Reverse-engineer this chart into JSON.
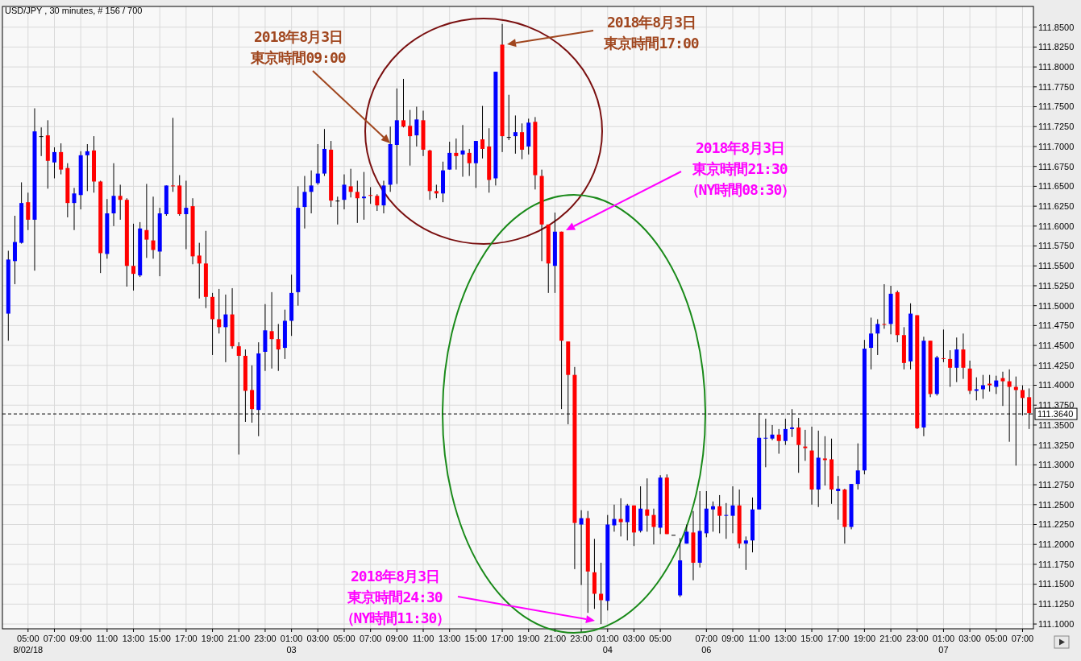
{
  "chart_data": {
    "type": "candlestick",
    "title": "USD/JPY , 30 minutes, # 156 / 700",
    "categories": [
      null,
      null,
      null,
      "05:00\n8/02/18",
      null,
      null,
      null,
      "07:00",
      null,
      null,
      null,
      "09:00",
      null,
      null,
      null,
      "11:00",
      null,
      null,
      null,
      "13:00",
      null,
      null,
      null,
      "15:00",
      null,
      null,
      null,
      "17:00",
      null,
      null,
      null,
      "19:00",
      null,
      null,
      null,
      "21:00",
      null,
      null,
      null,
      "23:00",
      null,
      null,
      null,
      "01:00\n03",
      null,
      null,
      null,
      "03:00",
      null,
      null,
      null,
      "05:00",
      null,
      null,
      null,
      "07:00",
      null,
      null,
      null,
      "09:00",
      null,
      null,
      null,
      "11:00",
      null,
      null,
      null,
      "13:00",
      null,
      null,
      null,
      "15:00",
      null,
      null,
      null,
      "17:00",
      null,
      null,
      null,
      "19:00",
      null,
      null,
      null,
      "21:00",
      null,
      null,
      null,
      "23:00",
      null,
      null,
      null,
      "01:00\n04",
      null,
      null,
      null,
      "03:00",
      null,
      null,
      null,
      "05:00",
      null,
      null,
      null,
      null,
      null,
      null,
      "07:00\n06",
      null,
      null,
      null,
      "09:00",
      null,
      null,
      null,
      "11:00",
      null,
      null,
      null,
      "13:00",
      null,
      null,
      null,
      "15:00",
      null,
      null,
      null,
      "17:00",
      null,
      null,
      null,
      "19:00",
      null,
      null,
      null,
      "21:00",
      null,
      null,
      null,
      "23:00",
      null,
      null,
      null,
      "01:00\n07",
      null,
      null,
      null,
      "03:00",
      null,
      null,
      null,
      "05:00",
      null,
      null,
      null,
      "07:00",
      null
    ],
    "ohlc": [
      [
        111.49,
        111.569,
        111.456,
        111.558
      ],
      [
        111.556,
        111.613,
        111.527,
        111.58
      ],
      [
        111.579,
        111.655,
        111.578,
        111.629
      ],
      [
        111.63,
        111.642,
        111.595,
        111.608
      ],
      [
        111.608,
        111.748,
        111.544,
        111.719
      ],
      [
        111.713,
        111.724,
        111.688,
        111.713
      ],
      [
        111.714,
        111.733,
        111.647,
        111.682
      ],
      [
        111.68,
        111.699,
        111.66,
        111.693
      ],
      [
        111.693,
        111.704,
        111.665,
        111.671
      ],
      [
        111.673,
        111.679,
        111.611,
        111.629
      ],
      [
        111.629,
        111.648,
        111.595,
        111.641
      ],
      [
        111.639,
        111.694,
        111.621,
        111.689
      ],
      [
        111.689,
        111.703,
        111.644,
        111.694
      ],
      [
        111.695,
        111.713,
        111.642,
        111.656
      ],
      [
        111.656,
        111.657,
        111.541,
        111.566
      ],
      [
        111.565,
        111.634,
        111.559,
        111.616
      ],
      [
        111.616,
        111.679,
        111.6,
        111.638
      ],
      [
        111.638,
        111.652,
        111.608,
        111.633
      ],
      [
        111.633,
        111.635,
        111.524,
        111.55
      ],
      [
        111.55,
        111.603,
        111.519,
        111.54
      ],
      [
        111.538,
        111.605,
        111.536,
        111.597
      ],
      [
        111.595,
        111.653,
        111.56,
        111.583
      ],
      [
        111.582,
        111.637,
        111.559,
        111.57
      ],
      [
        111.568,
        111.623,
        111.537,
        111.616
      ],
      [
        111.615,
        111.651,
        111.613,
        111.651
      ],
      [
        111.651,
        111.736,
        111.643,
        111.65
      ],
      [
        111.651,
        111.664,
        111.613,
        111.615
      ],
      [
        111.615,
        111.657,
        111.571,
        111.623
      ],
      [
        111.625,
        111.635,
        111.552,
        111.562
      ],
      [
        111.563,
        111.579,
        111.509,
        111.553
      ],
      [
        111.553,
        111.594,
        111.497,
        111.511
      ],
      [
        111.511,
        111.516,
        111.438,
        111.483
      ],
      [
        111.483,
        111.521,
        111.465,
        111.473
      ],
      [
        111.473,
        111.514,
        111.429,
        111.489
      ],
      [
        111.489,
        111.522,
        111.446,
        111.449
      ],
      [
        111.449,
        111.454,
        111.313,
        111.437
      ],
      [
        111.437,
        111.445,
        111.354,
        111.393
      ],
      [
        111.394,
        111.425,
        111.353,
        111.37
      ],
      [
        111.369,
        111.454,
        111.336,
        111.44
      ],
      [
        111.442,
        111.502,
        111.418,
        111.469
      ],
      [
        111.468,
        111.517,
        111.421,
        111.458
      ],
      [
        111.458,
        111.477,
        111.418,
        111.445
      ],
      [
        111.447,
        111.495,
        111.433,
        111.481
      ],
      [
        111.481,
        111.539,
        111.462,
        111.516
      ],
      [
        111.517,
        111.65,
        111.5,
        111.623
      ],
      [
        111.624,
        111.663,
        111.597,
        111.643
      ],
      [
        111.643,
        111.67,
        111.616,
        111.651
      ],
      [
        111.654,
        111.703,
        111.652,
        111.666
      ],
      [
        111.666,
        111.722,
        111.663,
        111.697
      ],
      [
        111.696,
        111.707,
        111.624,
        111.632
      ],
      [
        111.632,
        111.637,
        111.602,
        111.632
      ],
      [
        111.633,
        111.665,
        111.621,
        111.652
      ],
      [
        111.65,
        111.672,
        111.636,
        111.643
      ],
      [
        111.643,
        111.657,
        111.604,
        111.635
      ],
      [
        111.635,
        111.668,
        111.608,
        111.637
      ],
      [
        111.639,
        111.649,
        111.628,
        111.638
      ],
      [
        111.638,
        111.64,
        111.619,
        111.626
      ],
      [
        111.626,
        111.657,
        111.616,
        111.651
      ],
      [
        111.652,
        111.725,
        111.643,
        111.703
      ],
      [
        111.702,
        111.773,
        111.653,
        111.733
      ],
      [
        111.733,
        111.785,
        111.724,
        111.725
      ],
      [
        111.726,
        111.746,
        111.676,
        111.713
      ],
      [
        111.714,
        111.75,
        111.7,
        111.734
      ],
      [
        111.733,
        111.745,
        111.688,
        111.696
      ],
      [
        111.695,
        111.696,
        111.633,
        111.644
      ],
      [
        111.644,
        111.652,
        111.635,
        111.641
      ],
      [
        111.641,
        111.681,
        111.63,
        111.67
      ],
      [
        111.671,
        111.706,
        111.671,
        111.692
      ],
      [
        111.692,
        111.71,
        111.671,
        111.688
      ],
      [
        111.69,
        111.727,
        111.662,
        111.695
      ],
      [
        111.692,
        111.697,
        111.663,
        111.679
      ],
      [
        111.679,
        111.707,
        111.648,
        111.707
      ],
      [
        111.709,
        111.751,
        111.685,
        111.697
      ],
      [
        111.7,
        111.723,
        111.642,
        111.658
      ],
      [
        111.66,
        111.794,
        111.651,
        111.794
      ],
      [
        111.828,
        111.854,
        111.693,
        111.713
      ],
      [
        111.712,
        111.765,
        111.708,
        111.712
      ],
      [
        111.713,
        111.739,
        111.691,
        111.718
      ],
      [
        111.718,
        111.729,
        111.684,
        111.696
      ],
      [
        111.7,
        111.735,
        111.69,
        111.73
      ],
      [
        111.731,
        111.737,
        111.646,
        111.664
      ],
      [
        111.663,
        111.671,
        111.556,
        111.602
      ],
      [
        111.602,
        111.602,
        111.516,
        111.553
      ],
      [
        111.55,
        111.617,
        111.516,
        111.593
      ],
      [
        111.593,
        111.593,
        111.37,
        111.456
      ],
      [
        111.455,
        111.455,
        111.351,
        111.413
      ],
      [
        111.413,
        111.423,
        111.169,
        111.227
      ],
      [
        111.225,
        111.243,
        111.149,
        111.233
      ],
      [
        111.233,
        111.242,
        111.114,
        111.166
      ],
      [
        111.165,
        111.207,
        111.119,
        111.138
      ],
      [
        111.138,
        111.177,
        111.1,
        111.13
      ],
      [
        111.129,
        111.237,
        111.117,
        111.225
      ],
      [
        111.224,
        111.25,
        111.216,
        111.232
      ],
      [
        111.232,
        111.258,
        111.21,
        111.228
      ],
      [
        111.228,
        111.251,
        111.205,
        111.249
      ],
      [
        111.249,
        111.249,
        111.198,
        111.215
      ],
      [
        111.217,
        111.273,
        111.215,
        111.245
      ],
      [
        111.244,
        111.283,
        111.216,
        111.236
      ],
      [
        111.237,
        111.245,
        111.2,
        111.222
      ],
      [
        111.221,
        111.287,
        111.213,
        111.284
      ],
      [
        111.284,
        111.288,
        111.213,
        111.213
      ],
      [
        111.212,
        111.212,
        111.212,
        111.212
      ],
      [
        111.136,
        111.208,
        111.134,
        111.18
      ],
      [
        111.201,
        111.225,
        111.201,
        111.216
      ],
      [
        111.215,
        111.242,
        111.155,
        111.177
      ],
      [
        111.177,
        111.267,
        111.171,
        111.217
      ],
      [
        111.214,
        111.267,
        111.209,
        111.245
      ],
      [
        111.244,
        111.254,
        111.216,
        111.248
      ],
      [
        111.248,
        111.262,
        111.214,
        111.236
      ],
      [
        111.236,
        111.252,
        111.207,
        111.237
      ],
      [
        111.236,
        111.273,
        111.214,
        111.249
      ],
      [
        111.249,
        111.269,
        111.195,
        111.201
      ],
      [
        111.201,
        111.21,
        111.168,
        111.205
      ],
      [
        111.205,
        111.259,
        111.19,
        111.244
      ],
      [
        111.244,
        111.365,
        111.244,
        111.334
      ],
      [
        111.333,
        111.358,
        111.297,
        111.334
      ],
      [
        111.333,
        111.35,
        111.331,
        111.338
      ],
      [
        111.338,
        111.345,
        111.314,
        111.33
      ],
      [
        111.33,
        111.358,
        111.325,
        111.345
      ],
      [
        111.345,
        111.37,
        111.335,
        111.347
      ],
      [
        111.347,
        111.359,
        111.29,
        111.325
      ],
      [
        111.323,
        111.344,
        111.305,
        111.321
      ],
      [
        111.318,
        111.348,
        111.25,
        111.269
      ],
      [
        111.269,
        111.343,
        111.247,
        111.309
      ],
      [
        111.308,
        111.336,
        111.274,
        111.306
      ],
      [
        111.307,
        111.333,
        111.251,
        111.269
      ],
      [
        111.267,
        111.286,
        111.231,
        111.27
      ],
      [
        111.269,
        111.27,
        111.201,
        111.222
      ],
      [
        111.222,
        111.276,
        111.219,
        111.276
      ],
      [
        111.276,
        111.327,
        111.269,
        111.293
      ],
      [
        111.293,
        111.457,
        111.288,
        111.446
      ],
      [
        111.447,
        111.485,
        111.42,
        111.465
      ],
      [
        111.465,
        111.483,
        111.438,
        111.477
      ],
      [
        111.477,
        111.527,
        111.471,
        111.476
      ],
      [
        111.477,
        111.525,
        111.464,
        111.515
      ],
      [
        111.517,
        111.519,
        111.454,
        111.463
      ],
      [
        111.463,
        111.473,
        111.42,
        111.428
      ],
      [
        111.43,
        111.503,
        111.42,
        111.49
      ],
      [
        111.488,
        111.488,
        111.345,
        111.346
      ],
      [
        111.347,
        111.461,
        111.336,
        111.456
      ],
      [
        111.456,
        111.456,
        111.385,
        111.389
      ],
      [
        111.389,
        111.437,
        111.387,
        111.435
      ],
      [
        111.434,
        111.47,
        111.429,
        111.433
      ],
      [
        111.433,
        111.444,
        111.398,
        111.422
      ],
      [
        111.422,
        111.46,
        111.404,
        111.445
      ],
      [
        111.445,
        111.465,
        111.408,
        111.422
      ],
      [
        111.421,
        111.431,
        111.389,
        111.393
      ],
      [
        111.393,
        111.41,
        111.381,
        111.395
      ],
      [
        111.395,
        111.413,
        111.383,
        111.4
      ],
      [
        111.402,
        111.413,
        111.392,
        111.4
      ],
      [
        111.398,
        111.412,
        111.389,
        111.406
      ],
      [
        111.409,
        111.417,
        111.374,
        111.405
      ],
      [
        111.405,
        111.42,
        111.329,
        111.398
      ],
      [
        111.398,
        111.411,
        111.299,
        111.394
      ],
      [
        111.394,
        111.4,
        111.362,
        111.384
      ],
      [
        111.385,
        111.396,
        111.345,
        111.365
      ]
    ],
    "colors": [
      "#0000ff",
      "#0000ff",
      "#0000ff",
      "#ff0000",
      "#0000ff",
      "#000000",
      "#ff0000",
      "#0000ff",
      "#ff0000",
      "#ff0000",
      "#0000ff",
      "#0000ff",
      "#0000ff",
      "#ff0000",
      "#ff0000",
      "#0000ff",
      "#0000ff",
      "#ff0000",
      "#ff0000",
      "#ff0000",
      "#0000ff",
      "#ff0000",
      "#ff0000",
      "#0000ff",
      "#0000ff",
      "#ff0000",
      "#ff0000",
      "#0000ff",
      "#ff0000",
      "#ff0000",
      "#ff0000",
      "#ff0000",
      "#ff0000",
      "#0000ff",
      "#ff0000",
      "#ff0000",
      "#ff0000",
      "#ff0000",
      "#0000ff",
      "#0000ff",
      "#ff0000",
      "#ff0000",
      "#0000ff",
      "#0000ff",
      "#0000ff",
      "#0000ff",
      "#0000ff",
      "#0000ff",
      "#0000ff",
      "#ff0000",
      "#000000",
      "#0000ff",
      "#ff0000",
      "#ff0000",
      "#0000ff",
      "#ff0000",
      "#ff0000",
      "#0000ff",
      "#0000ff",
      "#0000ff",
      "#ff0000",
      "#ff0000",
      "#0000ff",
      "#ff0000",
      "#ff0000",
      "#ff0000",
      "#0000ff",
      "#0000ff",
      "#ff0000",
      "#0000ff",
      "#ff0000",
      "#0000ff",
      "#ff0000",
      "#ff0000",
      "#0000ff",
      "#ff0000",
      "#000000",
      "#0000ff",
      "#ff0000",
      "#0000ff",
      "#ff0000",
      "#ff0000",
      "#ff0000",
      "#0000ff",
      "#ff0000",
      "#ff0000",
      "#ff0000",
      "#0000ff",
      "#ff0000",
      "#ff0000",
      "#ff0000",
      "#0000ff",
      "#0000ff",
      "#ff0000",
      "#0000ff",
      "#ff0000",
      "#0000ff",
      "#ff0000",
      "#ff0000",
      "#0000ff",
      "#ff0000",
      "#000000",
      "#0000ff",
      "#0000ff",
      "#ff0000",
      "#0000ff",
      "#0000ff",
      "#0000ff",
      "#ff0000",
      "#0000ff",
      "#0000ff",
      "#ff0000",
      "#0000ff",
      "#0000ff",
      "#0000ff",
      "#0000ff",
      "#0000ff",
      "#ff0000",
      "#0000ff",
      "#0000ff",
      "#ff0000",
      "#ff0000",
      "#ff0000",
      "#0000ff",
      "#ff0000",
      "#ff0000",
      "#0000ff",
      "#ff0000",
      "#0000ff",
      "#0000ff",
      "#0000ff",
      "#0000ff",
      "#0000ff",
      "#ff0000",
      "#0000ff",
      "#ff0000",
      "#ff0000",
      "#0000ff",
      "#ff0000",
      "#0000ff",
      "#ff0000",
      "#0000ff",
      "#ff0000",
      "#ff0000",
      "#0000ff",
      "#ff0000",
      "#ff0000",
      "#0000ff",
      "#0000ff",
      "#ff0000",
      "#0000ff",
      "#ff0000",
      "#ff0000",
      "#ff0000",
      "#ff0000",
      "#ff0000"
    ],
    "ylim": [
      111.094,
      111.876
    ],
    "yticks": [
      {
        "value": 111.1,
        "label": "111.1000"
      },
      {
        "value": 111.125,
        "label": "111.1250"
      },
      {
        "value": 111.15,
        "label": "111.1500"
      },
      {
        "value": 111.175,
        "label": "111.1750"
      },
      {
        "value": 111.2,
        "label": "111.2000"
      },
      {
        "value": 111.225,
        "label": "111.2250"
      },
      {
        "value": 111.25,
        "label": "111.2500"
      },
      {
        "value": 111.275,
        "label": "111.2750"
      },
      {
        "value": 111.3,
        "label": "111.3000"
      },
      {
        "value": 111.325,
        "label": "111.3250"
      },
      {
        "value": 111.35,
        "label": "111.3500"
      },
      {
        "value": 111.375,
        "label": "111.3750"
      },
      {
        "value": 111.4,
        "label": "111.4000"
      },
      {
        "value": 111.425,
        "label": "111.4250"
      },
      {
        "value": 111.45,
        "label": "111.4500"
      },
      {
        "value": 111.475,
        "label": "111.4750"
      },
      {
        "value": 111.5,
        "label": "111.5000"
      },
      {
        "value": 111.525,
        "label": "111.5250"
      },
      {
        "value": 111.55,
        "label": "111.5500"
      },
      {
        "value": 111.575,
        "label": "111.5750"
      },
      {
        "value": 111.6,
        "label": "111.6000"
      },
      {
        "value": 111.625,
        "label": "111.6250"
      },
      {
        "value": 111.65,
        "label": "111.6500"
      },
      {
        "value": 111.675,
        "label": "111.6750"
      },
      {
        "value": 111.7,
        "label": "111.7000"
      },
      {
        "value": 111.725,
        "label": "111.7250"
      },
      {
        "value": 111.75,
        "label": "111.7500"
      },
      {
        "value": 111.775,
        "label": "111.7750"
      },
      {
        "value": 111.8,
        "label": "111.8000"
      },
      {
        "value": 111.825,
        "label": "111.8250"
      },
      {
        "value": 111.85,
        "label": "111.8500"
      }
    ],
    "grid": true,
    "ref_lines": [
      {
        "axis": "y",
        "value": 111.364,
        "label": "111.3640",
        "line_style": "dashed",
        "color": "#000000"
      }
    ],
    "annotations": [
      "2018年8月3日",
      "東京時間09:00",
      "2018年8月3日",
      "東京時間17:00",
      "2018年8月3日",
      "東京時間21:30",
      "（NY時間08:30）",
      "2018年8月3日",
      "東京時間24:30",
      "（NY時間11:30）"
    ]
  }
}
